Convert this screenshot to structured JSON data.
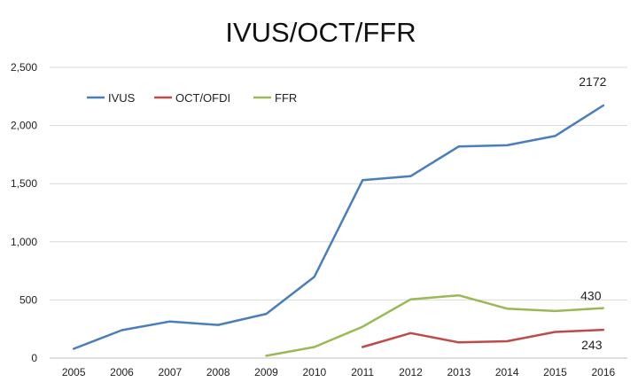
{
  "chart_data": {
    "type": "line",
    "title": "IVUS/OCT/FFR",
    "xlabel": "",
    "ylabel": "",
    "categories": [
      "2005",
      "2006",
      "2007",
      "2008",
      "2009",
      "2010",
      "2011",
      "2012",
      "2013",
      "2014",
      "2015",
      "2016"
    ],
    "ylim": [
      0,
      2500
    ],
    "yticks": [
      0,
      500,
      1000,
      1500,
      2000,
      2500
    ],
    "ytick_labels": [
      "0",
      "500",
      "1,000",
      "1,500",
      "2,000",
      "2,500"
    ],
    "grid": "horizontal",
    "legend_position": "top-left",
    "series": [
      {
        "name": "IVUS",
        "color": "#4a7ebb",
        "values": [
          80,
          240,
          315,
          285,
          380,
          700,
          1530,
          1565,
          1820,
          1830,
          1910,
          2172
        ],
        "end_label": "2172"
      },
      {
        "name": "OCT/OFDI",
        "color": "#be4b48",
        "values": [
          null,
          null,
          null,
          null,
          null,
          null,
          95,
          215,
          135,
          145,
          225,
          243
        ],
        "end_label": "243"
      },
      {
        "name": "FFR",
        "color": "#98b954",
        "values": [
          null,
          null,
          null,
          null,
          20,
          95,
          270,
          505,
          540,
          425,
          405,
          430
        ],
        "end_label": "430"
      }
    ]
  }
}
